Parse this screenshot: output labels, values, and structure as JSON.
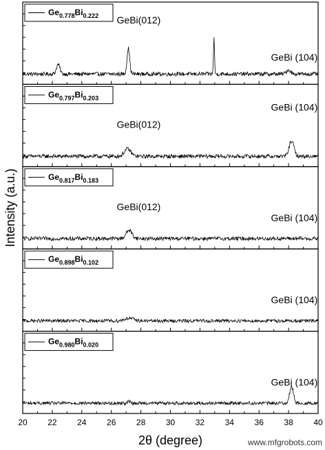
{
  "chart_data": {
    "type": "line",
    "xlabel": "2θ (degree)",
    "ylabel": "Intensity (a.u.)",
    "xlim": [
      20,
      40
    ],
    "x_ticks": [
      20,
      22,
      24,
      26,
      28,
      30,
      32,
      34,
      36,
      38,
      40
    ],
    "grid": false,
    "panels": [
      {
        "legend_label": {
          "base1": "Ge",
          "sub1": "0.778",
          "base2": "Bi",
          "sub2": "0.222"
        },
        "annotations": [
          {
            "text": "GeBi(012)",
            "x": 27.2
          },
          {
            "text": "GeBi (104)",
            "x": 38.2
          }
        ],
        "peaks": [
          {
            "x": 22.4,
            "height": 0.34,
            "width": 0.12
          },
          {
            "x": 27.15,
            "height": 0.92,
            "width": 0.09
          },
          {
            "x": 32.95,
            "height": 1.3,
            "width": 0.035
          },
          {
            "x": 38.0,
            "height": 0.14,
            "width": 0.15
          }
        ],
        "noise": 0.07
      },
      {
        "legend_label": {
          "base1": "Ge",
          "sub1": "0.797",
          "base2": "Bi",
          "sub2": "0.203"
        },
        "annotations": [
          {
            "text": "GeBi(012)",
            "x": 27.2
          },
          {
            "text": "GeBi (104)",
            "x": 38.2
          }
        ],
        "peaks": [
          {
            "x": 27.1,
            "height": 0.26,
            "width": 0.22
          },
          {
            "x": 38.2,
            "height": 0.55,
            "width": 0.16
          }
        ],
        "noise": 0.07
      },
      {
        "legend_label": {
          "base1": "Ge",
          "sub1": "0.817",
          "base2": "Bi",
          "sub2": "0.183"
        },
        "annotations": [
          {
            "text": "GeBi(012)",
            "x": 27.2
          },
          {
            "text": "GeBi (104)",
            "x": 38.2
          }
        ],
        "peaks": [
          {
            "x": 27.2,
            "height": 0.3,
            "width": 0.2
          }
        ],
        "noise": 0.07
      },
      {
        "legend_label": {
          "base1": "Ge",
          "sub1": "0.898",
          "base2": "Bi",
          "sub2": "0.102"
        },
        "annotations": [
          {
            "text": "GeBi (104)",
            "x": 38.2
          }
        ],
        "peaks": [
          {
            "x": 27.2,
            "height": 0.1,
            "width": 0.3
          }
        ],
        "noise": 0.06
      },
      {
        "legend_label": {
          "base1": "Ge",
          "sub1": "0.980",
          "base2": "Bi",
          "sub2": "0.020"
        },
        "annotations": [
          {
            "text": "GeBi (104)",
            "x": 38.2
          }
        ],
        "peaks": [
          {
            "x": 38.2,
            "height": 0.58,
            "width": 0.13
          },
          {
            "x": 27.2,
            "height": 0.06,
            "width": 0.1
          }
        ],
        "noise": 0.06
      }
    ]
  },
  "watermark": "www.mfgrobots.com"
}
